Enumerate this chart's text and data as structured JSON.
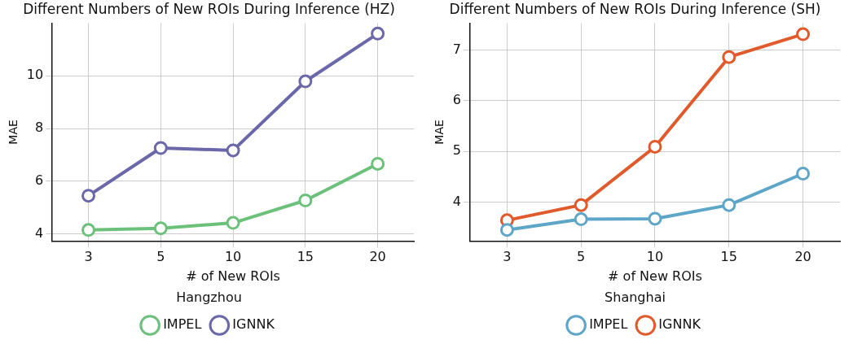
{
  "chart_data": [
    {
      "type": "line",
      "title": "Different Numbers of New ROIs During Inference (HZ)",
      "xlabel": "# of New ROIs",
      "ylabel": "MAE",
      "legend_title": "Hangzhou",
      "categories": [
        "3",
        "5",
        "10",
        "15",
        "20"
      ],
      "series": [
        {
          "name": "IMPEL",
          "color": "#6cc17a",
          "values": [
            4.15,
            4.21,
            4.42,
            5.27,
            6.66
          ]
        },
        {
          "name": "IGNNK",
          "color": "#6a68aa",
          "values": [
            5.45,
            7.26,
            7.17,
            9.79,
            11.6
          ]
        }
      ],
      "ylim": [
        3.73,
        12.0
      ],
      "yticks": [
        4,
        6,
        8,
        10
      ],
      "grid": true,
      "legend": "bottom",
      "marker": "circle",
      "line_style": "solid"
    },
    {
      "type": "line",
      "title": "Different Numbers of New ROIs During Inference (SH)",
      "xlabel": "# of New ROIs",
      "ylabel": "MAE",
      "legend_title": "Shanghai",
      "categories": [
        "3",
        "5",
        "10",
        "15",
        "20"
      ],
      "series": [
        {
          "name": "IMPEL",
          "color": "#5ea6c9",
          "values": [
            3.45,
            3.66,
            3.67,
            3.94,
            4.56
          ]
        },
        {
          "name": "IGNNK",
          "color": "#e05a2b",
          "values": [
            3.64,
            3.94,
            5.09,
            6.86,
            7.31
          ]
        }
      ],
      "ylim": [
        3.23,
        7.53
      ],
      "yticks": [
        4,
        5,
        6,
        7
      ],
      "grid": true,
      "legend": "bottom",
      "marker": "circle",
      "line_style": "solid"
    }
  ]
}
